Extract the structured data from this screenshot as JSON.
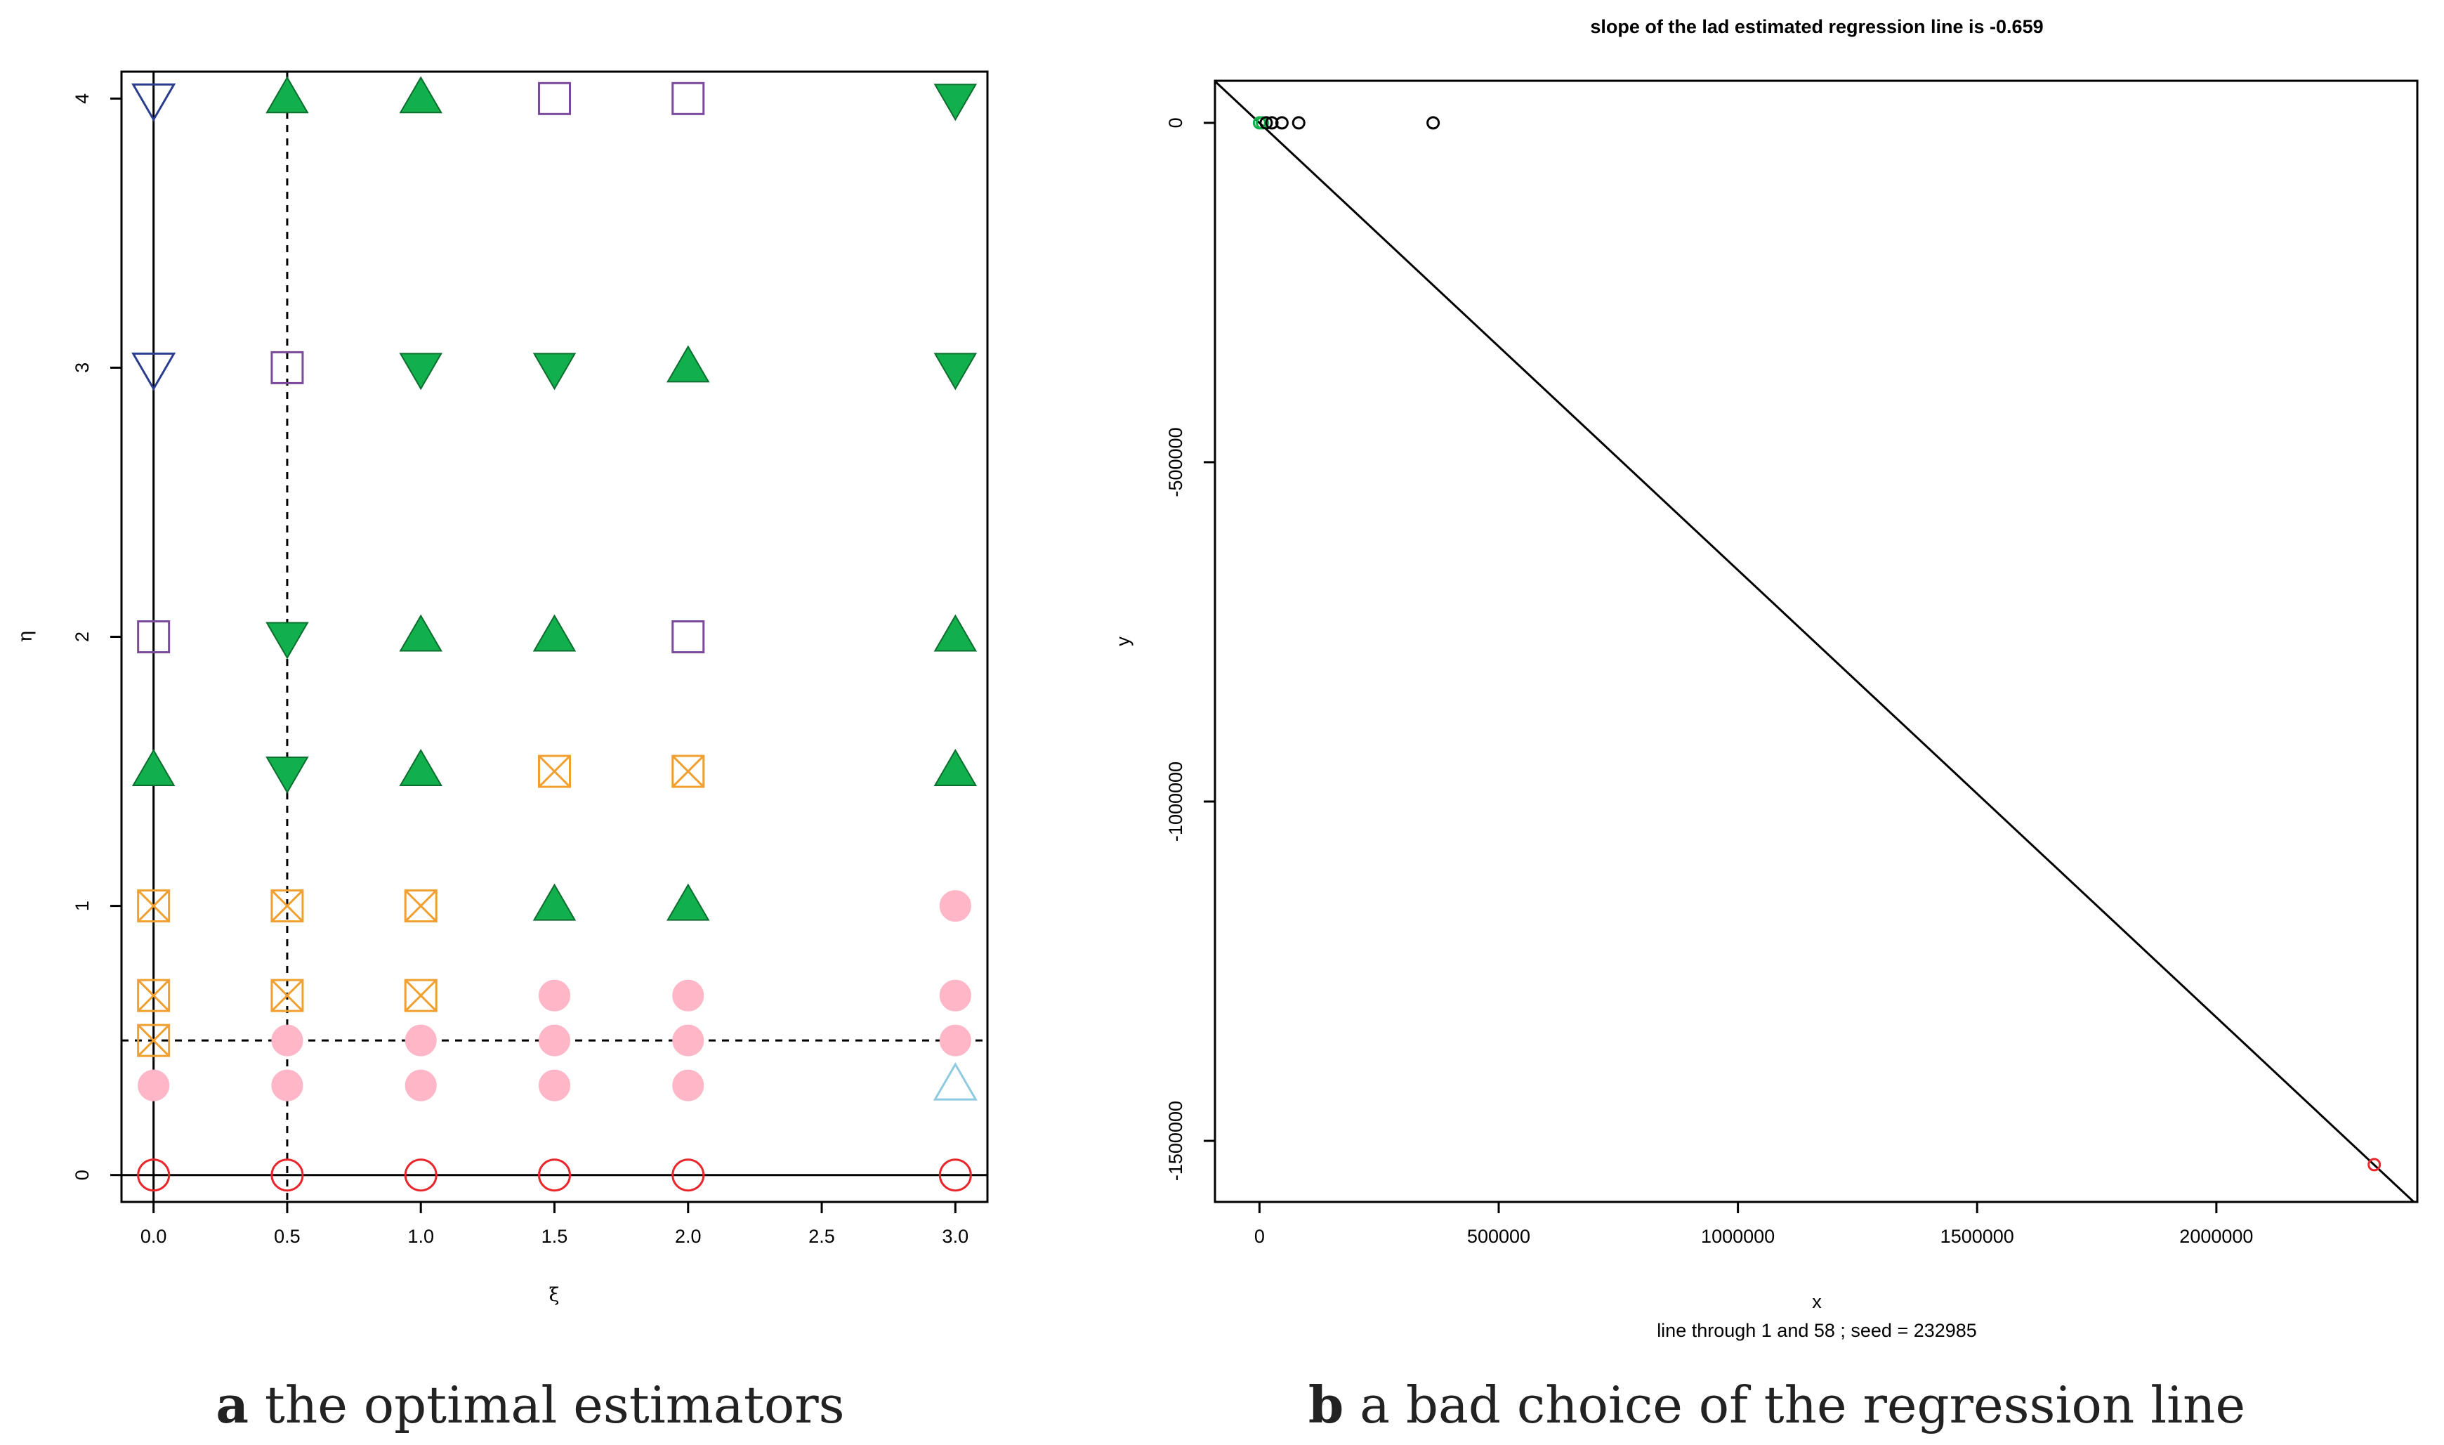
{
  "chart_data": [
    {
      "type": "scatter",
      "title": "",
      "xlabel": "ξ",
      "ylabel": "η",
      "xlim": [
        -0.12,
        3.12
      ],
      "ylim": [
        -0.1,
        4.1
      ],
      "xticks": [
        "0.0",
        "0.5",
        "1.0",
        "1.5",
        "2.0",
        "2.5",
        "3.0"
      ],
      "xtick_values": [
        0,
        0.5,
        1,
        1.5,
        2,
        2.5,
        3
      ],
      "yticks": [
        "0",
        "1",
        "2",
        "3",
        "4"
      ],
      "ytick_values": [
        0,
        1,
        2,
        3,
        4
      ],
      "reference_lines": [
        {
          "orientation": "vertical",
          "value": 0,
          "style": "solid"
        },
        {
          "orientation": "horizontal",
          "value": 0,
          "style": "solid"
        },
        {
          "orientation": "vertical",
          "value": 0.5,
          "style": "dashed"
        },
        {
          "orientation": "horizontal",
          "value": 0.5,
          "style": "dashed"
        }
      ],
      "marker_styles": {
        "circle-open": "#e8262b",
        "circle-filled": "#ffb6c6",
        "box-x": "#f0a030",
        "square-open": "#7b4a9b",
        "triangle-up-filled": "#12b04c",
        "triangle-down-filled": "#12b04c",
        "triangle-down-open": "#2a3d8f",
        "triangle-up-open": "#8ecae0"
      },
      "points": [
        {
          "x": 0,
          "y": 0,
          "marker": "circle-open"
        },
        {
          "x": 0.5,
          "y": 0,
          "marker": "circle-open"
        },
        {
          "x": 1,
          "y": 0,
          "marker": "circle-open"
        },
        {
          "x": 1.5,
          "y": 0,
          "marker": "circle-open"
        },
        {
          "x": 2,
          "y": 0,
          "marker": "circle-open"
        },
        {
          "x": 3,
          "y": 0,
          "marker": "circle-open"
        },
        {
          "x": 0,
          "y": 0.333,
          "marker": "circle-filled"
        },
        {
          "x": 0.5,
          "y": 0.333,
          "marker": "circle-filled"
        },
        {
          "x": 1,
          "y": 0.333,
          "marker": "circle-filled"
        },
        {
          "x": 1.5,
          "y": 0.333,
          "marker": "circle-filled"
        },
        {
          "x": 2,
          "y": 0.333,
          "marker": "circle-filled"
        },
        {
          "x": 3,
          "y": 0.333,
          "marker": "triangle-up-open"
        },
        {
          "x": 0,
          "y": 0.5,
          "marker": "box-x"
        },
        {
          "x": 0.5,
          "y": 0.5,
          "marker": "circle-filled"
        },
        {
          "x": 1,
          "y": 0.5,
          "marker": "circle-filled"
        },
        {
          "x": 1.5,
          "y": 0.5,
          "marker": "circle-filled"
        },
        {
          "x": 2,
          "y": 0.5,
          "marker": "circle-filled"
        },
        {
          "x": 3,
          "y": 0.5,
          "marker": "circle-filled"
        },
        {
          "x": 0,
          "y": 0.667,
          "marker": "box-x"
        },
        {
          "x": 0.5,
          "y": 0.667,
          "marker": "box-x"
        },
        {
          "x": 1,
          "y": 0.667,
          "marker": "box-x"
        },
        {
          "x": 1.5,
          "y": 0.667,
          "marker": "circle-filled"
        },
        {
          "x": 2,
          "y": 0.667,
          "marker": "circle-filled"
        },
        {
          "x": 3,
          "y": 0.667,
          "marker": "circle-filled"
        },
        {
          "x": 0,
          "y": 1,
          "marker": "box-x"
        },
        {
          "x": 0.5,
          "y": 1,
          "marker": "box-x"
        },
        {
          "x": 1,
          "y": 1,
          "marker": "box-x"
        },
        {
          "x": 1.5,
          "y": 1,
          "marker": "triangle-up-filled"
        },
        {
          "x": 2,
          "y": 1,
          "marker": "triangle-up-filled"
        },
        {
          "x": 3,
          "y": 1,
          "marker": "circle-filled"
        },
        {
          "x": 0,
          "y": 1.5,
          "marker": "triangle-up-filled"
        },
        {
          "x": 0.5,
          "y": 1.5,
          "marker": "triangle-down-filled"
        },
        {
          "x": 1,
          "y": 1.5,
          "marker": "triangle-up-filled"
        },
        {
          "x": 1.5,
          "y": 1.5,
          "marker": "box-x"
        },
        {
          "x": 2,
          "y": 1.5,
          "marker": "box-x"
        },
        {
          "x": 3,
          "y": 1.5,
          "marker": "triangle-up-filled"
        },
        {
          "x": 0,
          "y": 2,
          "marker": "square-open"
        },
        {
          "x": 0.5,
          "y": 2,
          "marker": "triangle-down-filled"
        },
        {
          "x": 1,
          "y": 2,
          "marker": "triangle-up-filled"
        },
        {
          "x": 1.5,
          "y": 2,
          "marker": "triangle-up-filled"
        },
        {
          "x": 2,
          "y": 2,
          "marker": "square-open"
        },
        {
          "x": 3,
          "y": 2,
          "marker": "triangle-up-filled"
        },
        {
          "x": 0,
          "y": 3,
          "marker": "triangle-down-open"
        },
        {
          "x": 0.5,
          "y": 3,
          "marker": "square-open"
        },
        {
          "x": 1,
          "y": 3,
          "marker": "triangle-down-filled"
        },
        {
          "x": 1.5,
          "y": 3,
          "marker": "triangle-down-filled"
        },
        {
          "x": 2,
          "y": 3,
          "marker": "triangle-up-filled"
        },
        {
          "x": 3,
          "y": 3,
          "marker": "triangle-down-filled"
        },
        {
          "x": 0,
          "y": 4,
          "marker": "triangle-down-open"
        },
        {
          "x": 0.5,
          "y": 4,
          "marker": "triangle-up-filled"
        },
        {
          "x": 1,
          "y": 4,
          "marker": "triangle-up-filled"
        },
        {
          "x": 1.5,
          "y": 4,
          "marker": "square-open"
        },
        {
          "x": 2,
          "y": 4,
          "marker": "square-open"
        },
        {
          "x": 3,
          "y": 4,
          "marker": "triangle-down-filled"
        }
      ],
      "caption_label": "a",
      "caption": "the optimal estimators"
    },
    {
      "type": "scatter",
      "title": "slope of the lad estimated regression line is -0.659",
      "xlabel": "x",
      "subtitle": "line through 1 and 58 ; seed = 232985",
      "ylabel": "y",
      "xlim": [
        -93000,
        2420000
      ],
      "ylim": [
        -1590000,
        62000
      ],
      "xticks": [
        "0",
        "500000",
        "1000000",
        "1500000",
        "2000000"
      ],
      "xtick_values": [
        0,
        500000,
        1000000,
        1500000,
        2000000
      ],
      "yticks": [
        "0",
        "-500000",
        "-1000000",
        "-1500000"
      ],
      "ytick_values": [
        0,
        -500000,
        -1000000,
        -1500000
      ],
      "regression_line": {
        "slope": -0.659,
        "through": [
          [
            0,
            0
          ],
          [
            2330000,
            -1535470
          ]
        ]
      },
      "points": [
        {
          "x": 0,
          "y": 0,
          "color": "#12b04c"
        },
        {
          "x": 6000,
          "y": 0,
          "color": "#12b04c"
        },
        {
          "x": 14000,
          "y": 0,
          "color": "#000000"
        },
        {
          "x": 26000,
          "y": 0,
          "color": "#000000"
        },
        {
          "x": 47000,
          "y": 0,
          "color": "#000000"
        },
        {
          "x": 82000,
          "y": 0,
          "color": "#000000"
        },
        {
          "x": 363000,
          "y": 0,
          "color": "#000000"
        },
        {
          "x": 2330000,
          "y": -1535000,
          "color": "#e8262b"
        }
      ],
      "caption_label": "b",
      "caption": "a bad choice of the regression line"
    }
  ]
}
